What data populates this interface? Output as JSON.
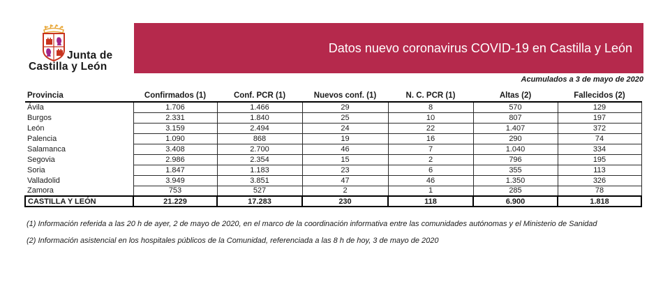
{
  "logo": {
    "org_line1": "Junta de",
    "org_line2": "Castilla y León",
    "crest_colors": {
      "crown": "#e9a93d",
      "castle": "#c8341f",
      "lion": "#a0278c",
      "border": "#c8341f"
    }
  },
  "banner": {
    "title": "Datos nuevo coronavirus COVID-19 en Castilla y León",
    "color": "#b5294c",
    "text_color": "#ffffff"
  },
  "subtitle": "Acumulados a 3 de mayo de 2020",
  "table": {
    "columns": [
      "Provincia",
      "Confirmados (1)",
      "Conf. PCR (1)",
      "Nuevos conf. (1)",
      "N. C. PCR (1)",
      "Altas (2)",
      "Fallecidos (2)"
    ],
    "rows": [
      [
        "Ávila",
        "1.706",
        "1.466",
        "29",
        "8",
        "570",
        "129"
      ],
      [
        "Burgos",
        "2.331",
        "1.840",
        "25",
        "10",
        "807",
        "197"
      ],
      [
        "León",
        "3.159",
        "2.494",
        "24",
        "22",
        "1.407",
        "372"
      ],
      [
        "Palencia",
        "1.090",
        "868",
        "19",
        "16",
        "290",
        "74"
      ],
      [
        "Salamanca",
        "3.408",
        "2.700",
        "46",
        "7",
        "1.040",
        "334"
      ],
      [
        "Segovia",
        "2.986",
        "2.354",
        "15",
        "2",
        "796",
        "195"
      ],
      [
        "Soria",
        "1.847",
        "1.183",
        "23",
        "6",
        "355",
        "113"
      ],
      [
        "Valladolid",
        "3.949",
        "3.851",
        "47",
        "46",
        "1.350",
        "326"
      ],
      [
        "Zamora",
        "753",
        "527",
        "2",
        "1",
        "285",
        "78"
      ]
    ],
    "total_row": [
      "CASTILLA Y LEÓN",
      "21.229",
      "17.283",
      "230",
      "118",
      "6.900",
      "1.818"
    ]
  },
  "footnotes": [
    "(1) Información referida a las 20 h de ayer, 2 de mayo de 2020, en el marco de la coordinación informativa entre las comunidades autónomas y el Ministerio de Sanidad",
    "(2) Información asistencial en los hospitales públicos de la Comunidad, referenciada a las 8 h de hoy, 3 de mayo de 2020"
  ]
}
